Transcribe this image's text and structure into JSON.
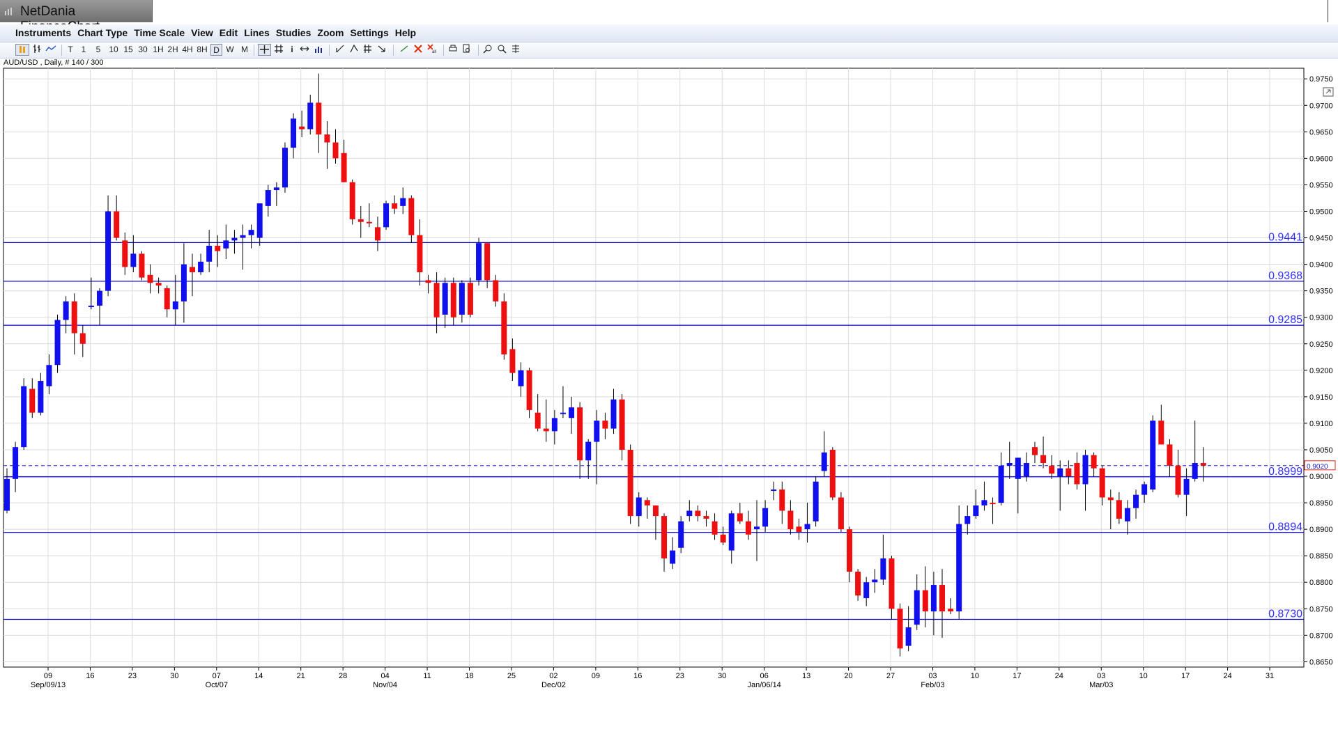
{
  "app": {
    "title": "NetDania FinanceChart"
  },
  "menu": [
    "Instruments",
    "Chart Type",
    "Time Scale",
    "View",
    "Edit",
    "Lines",
    "Studies",
    "Zoom",
    "Settings",
    "Help"
  ],
  "toolbar": {
    "timeframes": [
      "T",
      "1",
      "5",
      "10",
      "15",
      "30",
      "1H",
      "2H",
      "4H",
      "8H",
      "D",
      "W",
      "M"
    ],
    "active_timeframe": "D"
  },
  "chart_info": "AUD/USD , Daily, # 140 / 300",
  "chart_data": {
    "type": "candlestick",
    "symbol": "AUD/USD",
    "ylim": [
      0.864,
      0.977
    ],
    "y_ticks": [
      "0.9750",
      "0.9700",
      "0.9650",
      "0.9600",
      "0.9550",
      "0.9500",
      "0.9450",
      "0.9400",
      "0.9350",
      "0.9300",
      "0.9250",
      "0.9200",
      "0.9150",
      "0.9100",
      "0.9050",
      "0.9000",
      "0.8950",
      "0.8900",
      "0.8850",
      "0.8800",
      "0.8750",
      "0.8700",
      "0.8650"
    ],
    "x_day_labels": [
      "09",
      "16",
      "23",
      "30",
      "07",
      "14",
      "21",
      "28",
      "04",
      "11",
      "18",
      "25",
      "02",
      "09",
      "16",
      "23",
      "30",
      "06",
      "13",
      "20",
      "27",
      "03",
      "10",
      "17",
      "24",
      "03",
      "10",
      "17",
      "24",
      "31"
    ],
    "x_month_labels": [
      "Sep/09/13",
      "Oct/07",
      "Nov/04",
      "Dec/02",
      "Jan/06/14",
      "Feb/03",
      "Mar/03"
    ],
    "horizontal_lines": [
      {
        "value": 0.9441,
        "label": "0.9441"
      },
      {
        "value": 0.9368,
        "label": "0.9368"
      },
      {
        "value": 0.9285,
        "label": "0.9285"
      },
      {
        "value": 0.8999,
        "label": "0.8999"
      },
      {
        "value": 0.8894,
        "label": "0.8894"
      },
      {
        "value": 0.873,
        "label": "0.8730"
      }
    ],
    "current_price": {
      "value": 0.902,
      "label": "0.9020"
    },
    "colors": {
      "up": "#1010ee",
      "down": "#ee1010",
      "wick": "#000000",
      "level_line": "#0000cc",
      "level_label": "#3030ff",
      "grid": "#dcdcdc"
    },
    "candles": [
      {
        "o": 0.8935,
        "h": 0.9015,
        "l": 0.893,
        "c": 0.8995
      },
      {
        "o": 0.8995,
        "h": 0.9065,
        "l": 0.897,
        "c": 0.9055
      },
      {
        "o": 0.9055,
        "h": 0.9185,
        "l": 0.905,
        "c": 0.917
      },
      {
        "o": 0.9165,
        "h": 0.9185,
        "l": 0.911,
        "c": 0.912
      },
      {
        "o": 0.912,
        "h": 0.9195,
        "l": 0.9115,
        "c": 0.918
      },
      {
        "o": 0.917,
        "h": 0.923,
        "l": 0.9155,
        "c": 0.921
      },
      {
        "o": 0.921,
        "h": 0.9305,
        "l": 0.9195,
        "c": 0.9295
      },
      {
        "o": 0.9295,
        "h": 0.934,
        "l": 0.927,
        "c": 0.933
      },
      {
        "o": 0.933,
        "h": 0.9345,
        "l": 0.923,
        "c": 0.927
      },
      {
        "o": 0.927,
        "h": 0.9285,
        "l": 0.9225,
        "c": 0.925
      },
      {
        "o": 0.932,
        "h": 0.9375,
        "l": 0.9315,
        "c": 0.9322
      },
      {
        "o": 0.9322,
        "h": 0.9355,
        "l": 0.9285,
        "c": 0.935
      },
      {
        "o": 0.935,
        "h": 0.953,
        "l": 0.934,
        "c": 0.95
      },
      {
        "o": 0.95,
        "h": 0.953,
        "l": 0.9445,
        "c": 0.945
      },
      {
        "o": 0.9445,
        "h": 0.946,
        "l": 0.938,
        "c": 0.9395
      },
      {
        "o": 0.9395,
        "h": 0.9455,
        "l": 0.9385,
        "c": 0.942
      },
      {
        "o": 0.942,
        "h": 0.9425,
        "l": 0.937,
        "c": 0.9375
      },
      {
        "o": 0.938,
        "h": 0.94,
        "l": 0.9345,
        "c": 0.9365
      },
      {
        "o": 0.9365,
        "h": 0.9375,
        "l": 0.9345,
        "c": 0.936
      },
      {
        "o": 0.9355,
        "h": 0.936,
        "l": 0.93,
        "c": 0.9315
      },
      {
        "o": 0.9315,
        "h": 0.938,
        "l": 0.9285,
        "c": 0.933
      },
      {
        "o": 0.933,
        "h": 0.944,
        "l": 0.929,
        "c": 0.94
      },
      {
        "o": 0.9395,
        "h": 0.942,
        "l": 0.934,
        "c": 0.9385
      },
      {
        "o": 0.9385,
        "h": 0.942,
        "l": 0.938,
        "c": 0.9405
      },
      {
        "o": 0.9405,
        "h": 0.9465,
        "l": 0.9385,
        "c": 0.9435
      },
      {
        "o": 0.9435,
        "h": 0.9455,
        "l": 0.9395,
        "c": 0.9425
      },
      {
        "o": 0.943,
        "h": 0.9475,
        "l": 0.941,
        "c": 0.9445
      },
      {
        "o": 0.9445,
        "h": 0.9465,
        "l": 0.942,
        "c": 0.945
      },
      {
        "o": 0.945,
        "h": 0.9475,
        "l": 0.939,
        "c": 0.9455
      },
      {
        "o": 0.9455,
        "h": 0.9475,
        "l": 0.943,
        "c": 0.9465
      },
      {
        "o": 0.945,
        "h": 0.9515,
        "l": 0.9435,
        "c": 0.9515
      },
      {
        "o": 0.951,
        "h": 0.955,
        "l": 0.949,
        "c": 0.954
      },
      {
        "o": 0.954,
        "h": 0.9555,
        "l": 0.951,
        "c": 0.9545
      },
      {
        "o": 0.9545,
        "h": 0.963,
        "l": 0.9535,
        "c": 0.962
      },
      {
        "o": 0.962,
        "h": 0.9685,
        "l": 0.96,
        "c": 0.9675
      },
      {
        "o": 0.966,
        "h": 0.969,
        "l": 0.964,
        "c": 0.9655
      },
      {
        "o": 0.9655,
        "h": 0.972,
        "l": 0.9645,
        "c": 0.9705
      },
      {
        "o": 0.9705,
        "h": 0.976,
        "l": 0.961,
        "c": 0.9645
      },
      {
        "o": 0.9645,
        "h": 0.967,
        "l": 0.958,
        "c": 0.963
      },
      {
        "o": 0.963,
        "h": 0.9655,
        "l": 0.959,
        "c": 0.96
      },
      {
        "o": 0.961,
        "h": 0.9635,
        "l": 0.9555,
        "c": 0.9555
      },
      {
        "o": 0.9555,
        "h": 0.956,
        "l": 0.9475,
        "c": 0.9485
      },
      {
        "o": 0.9485,
        "h": 0.951,
        "l": 0.945,
        "c": 0.948
      },
      {
        "o": 0.948,
        "h": 0.9515,
        "l": 0.947,
        "c": 0.9478
      },
      {
        "o": 0.947,
        "h": 0.949,
        "l": 0.9425,
        "c": 0.9445
      },
      {
        "o": 0.947,
        "h": 0.952,
        "l": 0.9465,
        "c": 0.9515
      },
      {
        "o": 0.9515,
        "h": 0.953,
        "l": 0.9495,
        "c": 0.9505
      },
      {
        "o": 0.951,
        "h": 0.9545,
        "l": 0.9495,
        "c": 0.9525
      },
      {
        "o": 0.9525,
        "h": 0.953,
        "l": 0.944,
        "c": 0.9455
      },
      {
        "o": 0.9455,
        "h": 0.9485,
        "l": 0.936,
        "c": 0.9385
      },
      {
        "o": 0.937,
        "h": 0.938,
        "l": 0.9345,
        "c": 0.9365
      },
      {
        "o": 0.9365,
        "h": 0.9385,
        "l": 0.927,
        "c": 0.93
      },
      {
        "o": 0.9305,
        "h": 0.9375,
        "l": 0.928,
        "c": 0.9365
      },
      {
        "o": 0.9365,
        "h": 0.9375,
        "l": 0.9285,
        "c": 0.93
      },
      {
        "o": 0.9305,
        "h": 0.937,
        "l": 0.929,
        "c": 0.9365
      },
      {
        "o": 0.9365,
        "h": 0.9375,
        "l": 0.93,
        "c": 0.9305
      },
      {
        "o": 0.937,
        "h": 0.945,
        "l": 0.936,
        "c": 0.944
      },
      {
        "o": 0.944,
        "h": 0.944,
        "l": 0.9355,
        "c": 0.937
      },
      {
        "o": 0.937,
        "h": 0.938,
        "l": 0.932,
        "c": 0.933
      },
      {
        "o": 0.933,
        "h": 0.9345,
        "l": 0.922,
        "c": 0.923
      },
      {
        "o": 0.924,
        "h": 0.926,
        "l": 0.918,
        "c": 0.9195
      },
      {
        "o": 0.917,
        "h": 0.9215,
        "l": 0.915,
        "c": 0.92
      },
      {
        "o": 0.92,
        "h": 0.9205,
        "l": 0.911,
        "c": 0.9125
      },
      {
        "o": 0.912,
        "h": 0.9155,
        "l": 0.9085,
        "c": 0.909
      },
      {
        "o": 0.909,
        "h": 0.9145,
        "l": 0.9065,
        "c": 0.9085
      },
      {
        "o": 0.9085,
        "h": 0.9125,
        "l": 0.906,
        "c": 0.911
      },
      {
        "o": 0.912,
        "h": 0.917,
        "l": 0.911,
        "c": 0.912
      },
      {
        "o": 0.911,
        "h": 0.915,
        "l": 0.908,
        "c": 0.913
      },
      {
        "o": 0.913,
        "h": 0.914,
        "l": 0.8995,
        "c": 0.903
      },
      {
        "o": 0.903,
        "h": 0.907,
        "l": 0.8995,
        "c": 0.9065
      },
      {
        "o": 0.9065,
        "h": 0.9125,
        "l": 0.8985,
        "c": 0.9105
      },
      {
        "o": 0.9105,
        "h": 0.912,
        "l": 0.907,
        "c": 0.909
      },
      {
        "o": 0.909,
        "h": 0.9165,
        "l": 0.908,
        "c": 0.9145
      },
      {
        "o": 0.9145,
        "h": 0.9155,
        "l": 0.903,
        "c": 0.905
      },
      {
        "o": 0.905,
        "h": 0.906,
        "l": 0.891,
        "c": 0.8925
      },
      {
        "o": 0.8925,
        "h": 0.897,
        "l": 0.8905,
        "c": 0.896
      },
      {
        "o": 0.8955,
        "h": 0.896,
        "l": 0.892,
        "c": 0.8945
      },
      {
        "o": 0.8945,
        "h": 0.8945,
        "l": 0.888,
        "c": 0.8925
      },
      {
        "o": 0.8925,
        "h": 0.893,
        "l": 0.882,
        "c": 0.8845
      },
      {
        "o": 0.8835,
        "h": 0.8885,
        "l": 0.8825,
        "c": 0.886
      },
      {
        "o": 0.8865,
        "h": 0.8925,
        "l": 0.8855,
        "c": 0.8915
      },
      {
        "o": 0.8925,
        "h": 0.8955,
        "l": 0.8915,
        "c": 0.8935
      },
      {
        "o": 0.8935,
        "h": 0.8945,
        "l": 0.8915,
        "c": 0.8925
      },
      {
        "o": 0.8925,
        "h": 0.8935,
        "l": 0.8905,
        "c": 0.892
      },
      {
        "o": 0.8915,
        "h": 0.893,
        "l": 0.888,
        "c": 0.889
      },
      {
        "o": 0.889,
        "h": 0.8905,
        "l": 0.887,
        "c": 0.8875
      },
      {
        "o": 0.886,
        "h": 0.8935,
        "l": 0.8835,
        "c": 0.893
      },
      {
        "o": 0.893,
        "h": 0.895,
        "l": 0.891,
        "c": 0.8915
      },
      {
        "o": 0.8915,
        "h": 0.8935,
        "l": 0.888,
        "c": 0.889
      },
      {
        "o": 0.89,
        "h": 0.8955,
        "l": 0.884,
        "c": 0.8905
      },
      {
        "o": 0.8905,
        "h": 0.8955,
        "l": 0.8895,
        "c": 0.894
      },
      {
        "o": 0.8975,
        "h": 0.899,
        "l": 0.8955,
        "c": 0.8975
      },
      {
        "o": 0.8975,
        "h": 0.899,
        "l": 0.891,
        "c": 0.8935
      },
      {
        "o": 0.8935,
        "h": 0.8955,
        "l": 0.889,
        "c": 0.89
      },
      {
        "o": 0.8905,
        "h": 0.892,
        "l": 0.888,
        "c": 0.8895
      },
      {
        "o": 0.89,
        "h": 0.895,
        "l": 0.8875,
        "c": 0.891
      },
      {
        "o": 0.8915,
        "h": 0.9,
        "l": 0.8905,
        "c": 0.899
      },
      {
        "o": 0.901,
        "h": 0.9085,
        "l": 0.9,
        "c": 0.9045
      },
      {
        "o": 0.905,
        "h": 0.9055,
        "l": 0.8955,
        "c": 0.896
      },
      {
        "o": 0.896,
        "h": 0.897,
        "l": 0.8895,
        "c": 0.89
      },
      {
        "o": 0.89,
        "h": 0.8905,
        "l": 0.88,
        "c": 0.882
      },
      {
        "o": 0.882,
        "h": 0.8825,
        "l": 0.8765,
        "c": 0.8775
      },
      {
        "o": 0.877,
        "h": 0.881,
        "l": 0.8755,
        "c": 0.88
      },
      {
        "o": 0.88,
        "h": 0.8825,
        "l": 0.878,
        "c": 0.8805
      },
      {
        "o": 0.8805,
        "h": 0.889,
        "l": 0.8795,
        "c": 0.8845
      },
      {
        "o": 0.8845,
        "h": 0.885,
        "l": 0.873,
        "c": 0.875
      },
      {
        "o": 0.875,
        "h": 0.876,
        "l": 0.866,
        "c": 0.8675
      },
      {
        "o": 0.868,
        "h": 0.8755,
        "l": 0.867,
        "c": 0.8715
      },
      {
        "o": 0.872,
        "h": 0.8815,
        "l": 0.871,
        "c": 0.8785
      },
      {
        "o": 0.8785,
        "h": 0.883,
        "l": 0.8715,
        "c": 0.8745
      },
      {
        "o": 0.8745,
        "h": 0.882,
        "l": 0.87,
        "c": 0.8795
      },
      {
        "o": 0.8795,
        "h": 0.8825,
        "l": 0.8695,
        "c": 0.8745
      },
      {
        "o": 0.875,
        "h": 0.877,
        "l": 0.874,
        "c": 0.8745
      },
      {
        "o": 0.8745,
        "h": 0.8945,
        "l": 0.873,
        "c": 0.891
      },
      {
        "o": 0.891,
        "h": 0.8945,
        "l": 0.889,
        "c": 0.8925
      },
      {
        "o": 0.8925,
        "h": 0.8975,
        "l": 0.892,
        "c": 0.8945
      },
      {
        "o": 0.8945,
        "h": 0.899,
        "l": 0.8935,
        "c": 0.8955
      },
      {
        "o": 0.895,
        "h": 0.896,
        "l": 0.891,
        "c": 0.8948
      },
      {
        "o": 0.895,
        "h": 0.9045,
        "l": 0.8945,
        "c": 0.902
      },
      {
        "o": 0.902,
        "h": 0.9065,
        "l": 0.8995,
        "c": 0.9025
      },
      {
        "o": 0.8995,
        "h": 0.9035,
        "l": 0.893,
        "c": 0.9035
      },
      {
        "o": 0.9,
        "h": 0.9045,
        "l": 0.899,
        "c": 0.9025
      },
      {
        "o": 0.9055,
        "h": 0.9065,
        "l": 0.9025,
        "c": 0.904
      },
      {
        "o": 0.904,
        "h": 0.9075,
        "l": 0.9015,
        "c": 0.9025
      },
      {
        "o": 0.902,
        "h": 0.904,
        "l": 0.8995,
        "c": 0.9005
      },
      {
        "o": 0.9,
        "h": 0.903,
        "l": 0.8935,
        "c": 0.9015
      },
      {
        "o": 0.9015,
        "h": 0.903,
        "l": 0.8985,
        "c": 0.9
      },
      {
        "o": 0.9025,
        "h": 0.9045,
        "l": 0.8975,
        "c": 0.8985
      },
      {
        "o": 0.8985,
        "h": 0.905,
        "l": 0.8935,
        "c": 0.904
      },
      {
        "o": 0.904,
        "h": 0.9045,
        "l": 0.9,
        "c": 0.9015
      },
      {
        "o": 0.9015,
        "h": 0.902,
        "l": 0.8945,
        "c": 0.896
      },
      {
        "o": 0.896,
        "h": 0.8975,
        "l": 0.89,
        "c": 0.8955
      },
      {
        "o": 0.8955,
        "h": 0.897,
        "l": 0.891,
        "c": 0.892
      },
      {
        "o": 0.8915,
        "h": 0.8955,
        "l": 0.889,
        "c": 0.894
      },
      {
        "o": 0.894,
        "h": 0.8975,
        "l": 0.892,
        "c": 0.8965
      },
      {
        "o": 0.8965,
        "h": 0.899,
        "l": 0.895,
        "c": 0.8985
      },
      {
        "o": 0.8975,
        "h": 0.9115,
        "l": 0.897,
        "c": 0.9105
      },
      {
        "o": 0.9105,
        "h": 0.9135,
        "l": 0.906,
        "c": 0.906
      },
      {
        "o": 0.906,
        "h": 0.907,
        "l": 0.9,
        "c": 0.902
      },
      {
        "o": 0.902,
        "h": 0.905,
        "l": 0.896,
        "c": 0.8965
      },
      {
        "o": 0.8965,
        "h": 0.9015,
        "l": 0.8925,
        "c": 0.8995
      },
      {
        "o": 0.8995,
        "h": 0.9105,
        "l": 0.899,
        "c": 0.9025
      },
      {
        "o": 0.9025,
        "h": 0.9055,
        "l": 0.899,
        "c": 0.902
      }
    ]
  }
}
